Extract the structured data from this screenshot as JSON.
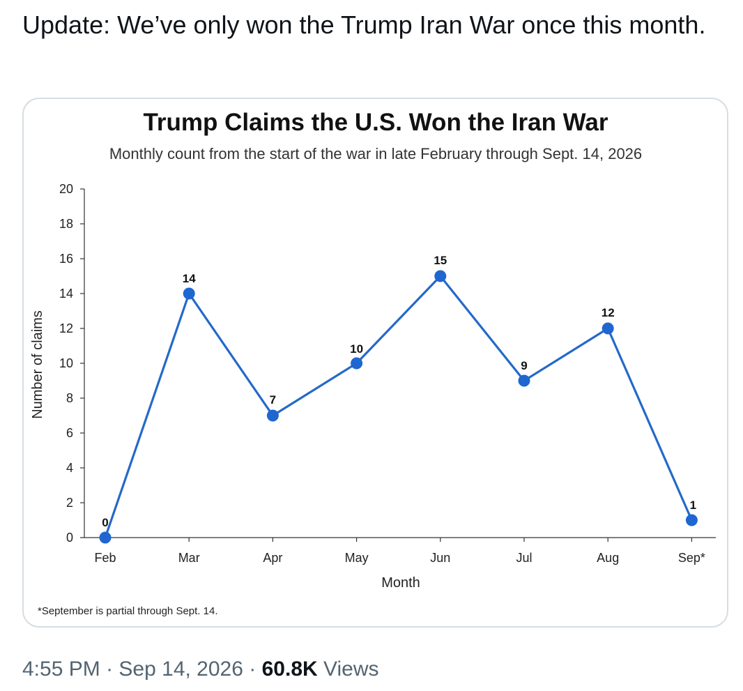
{
  "tweet": {
    "text": "Update: We’ve only won the Trump Iran War once this month."
  },
  "meta": {
    "time": "4:55 PM",
    "separator1": "·",
    "date": "Sep 14, 2026",
    "separator2": "·",
    "views_count": "60.8K",
    "views_label": "Views"
  },
  "colors": {
    "line": "#2469c9",
    "point": "#1f66d1",
    "card_border": "#d7dde2",
    "meta_text": "#536471"
  },
  "chart_data": {
    "type": "line",
    "title": "Trump Claims the U.S. Won the Iran War",
    "subtitle": "Monthly count from the start of the war in late February through Sept. 14, 2026",
    "xlabel": "Month",
    "ylabel": "Number of claims",
    "categories": [
      "Feb",
      "Mar",
      "Apr",
      "May",
      "Jun",
      "Jul",
      "Aug",
      "Sep*"
    ],
    "series": [
      {
        "values": [
          0,
          14,
          7,
          10,
          15,
          9,
          12,
          1
        ]
      }
    ],
    "data_labels": [
      "0",
      "14",
      "7",
      "10",
      "15",
      "9",
      "12",
      "1"
    ],
    "ylim": [
      0,
      20
    ],
    "yticks": [
      0,
      2,
      4,
      6,
      8,
      10,
      12,
      14,
      16,
      18,
      20
    ],
    "grid": false,
    "legend": "none",
    "footnote": "*September is partial through Sept. 14."
  }
}
